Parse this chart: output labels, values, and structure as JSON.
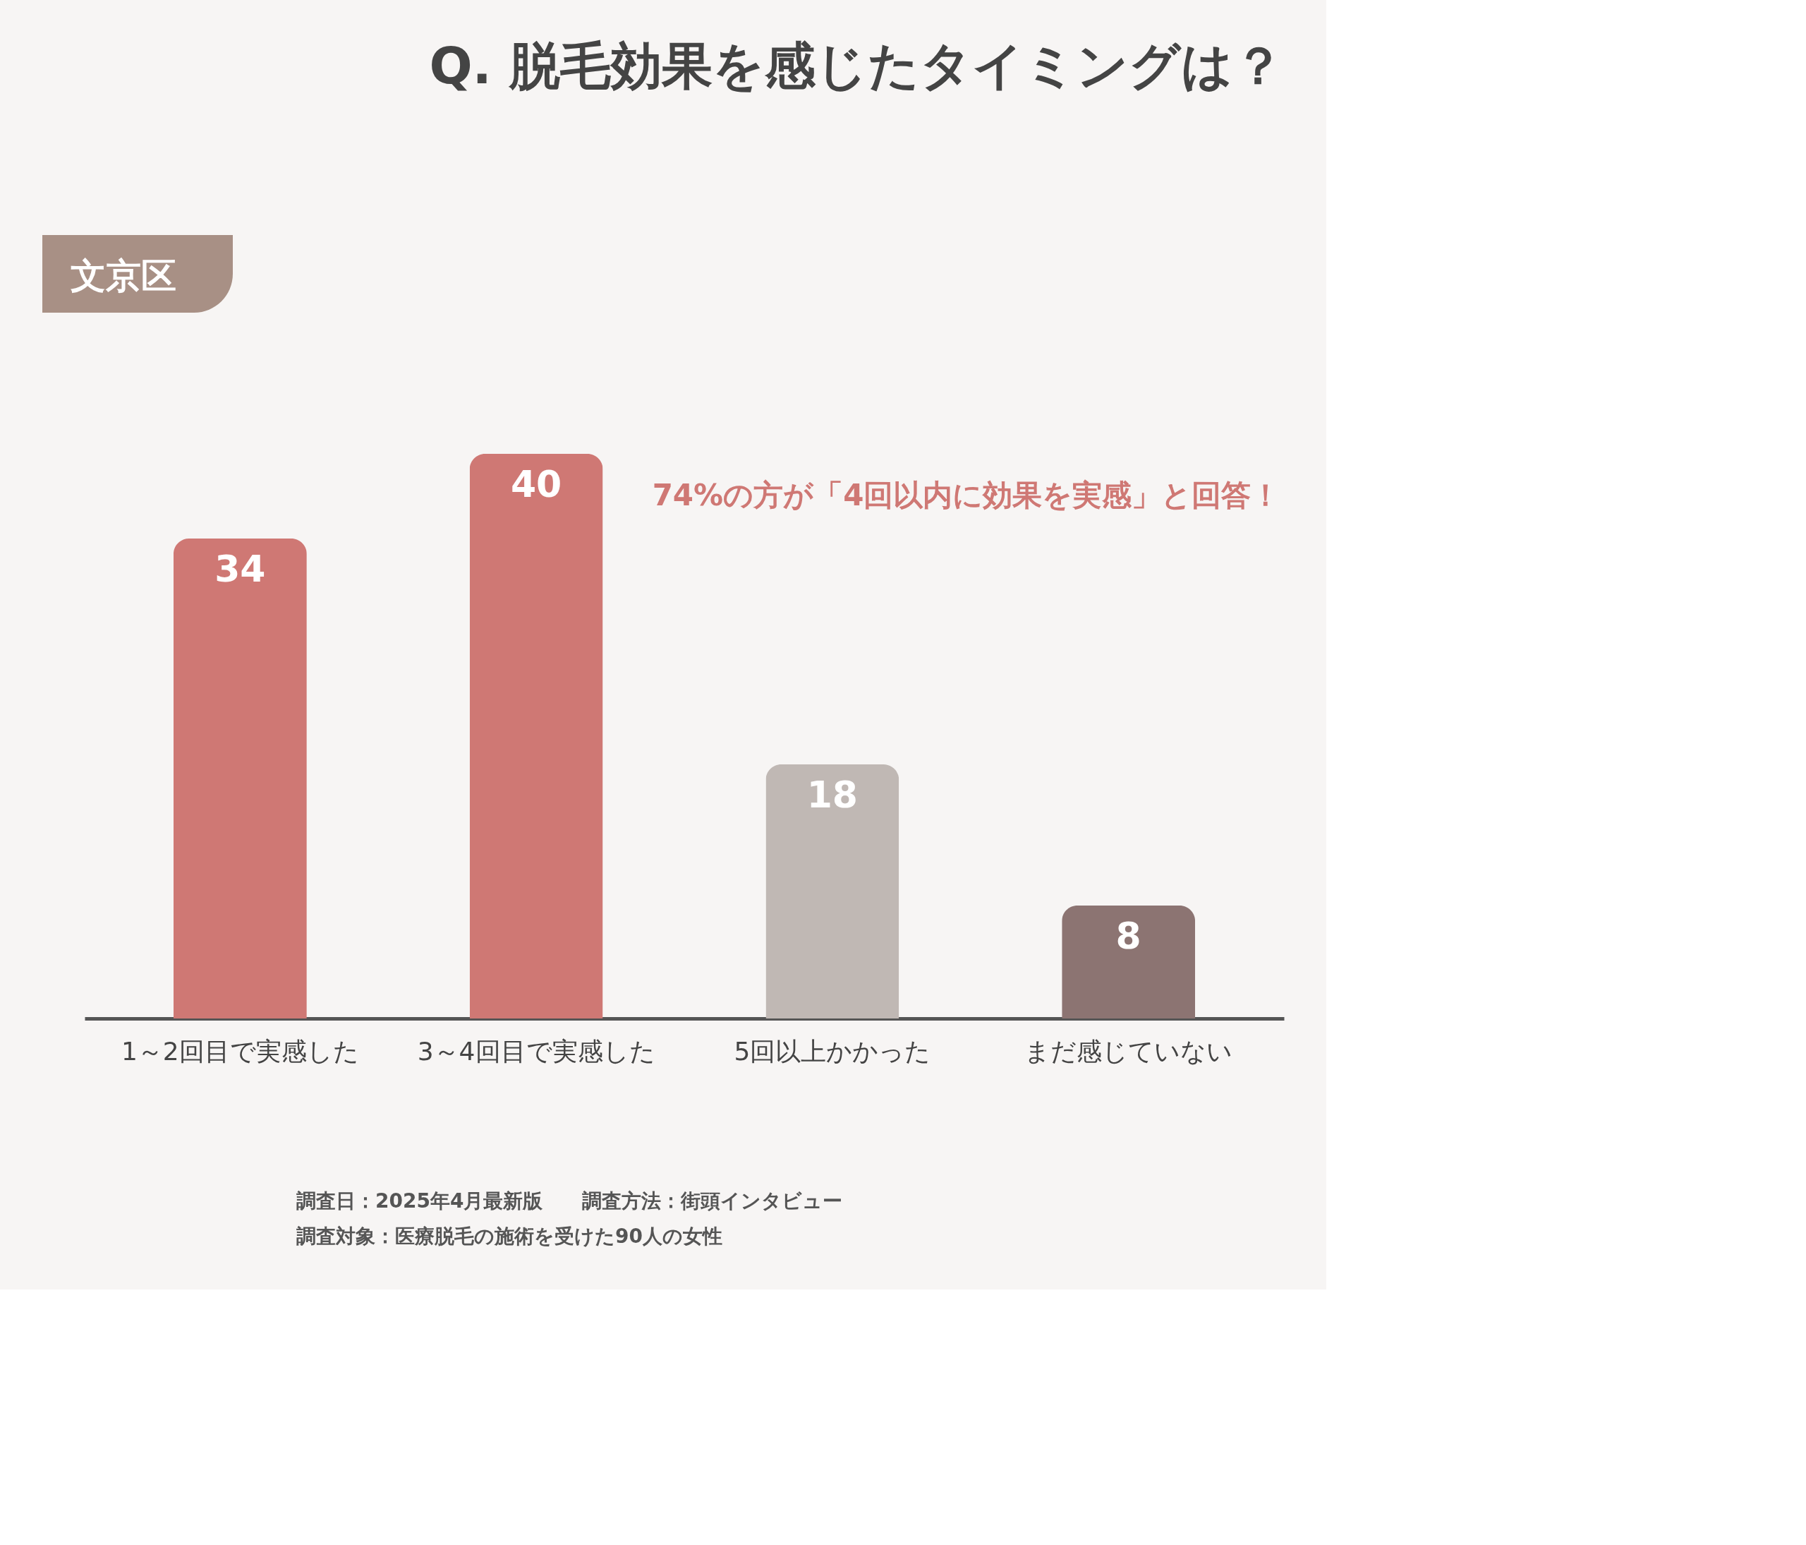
{
  "chart_data": {
    "type": "bar",
    "title": "Q. 脱毛効果を感じたタイミングは？",
    "categories": [
      "1～2回目で実感した",
      "3～4回目で実感した",
      "5回以上かかった",
      "まだ感じていない"
    ],
    "values": [
      34,
      40,
      18,
      8
    ],
    "colors": [
      "#cf7874",
      "#cf7874",
      "#c0b8b4",
      "#8c7472"
    ],
    "data_labels": true,
    "grid": false,
    "annotations": [
      "文京区",
      "74%の方が「4回以内に効果を実感」と回答！",
      "調査日：2025年4月最新版　　調査方法：街頭インタビュー",
      "調査対象：医療脱毛の施術を受けた90人の女性"
    ]
  }
}
